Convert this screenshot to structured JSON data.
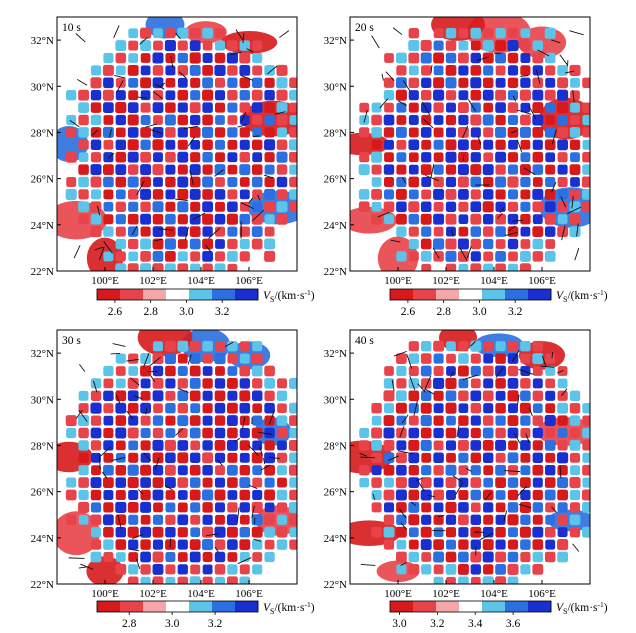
{
  "chart_data": [
    {
      "type": "heatmap",
      "panel_label": "10 s",
      "x_ticks": [
        "100°E",
        "102°E",
        "104°E",
        "106°E"
      ],
      "x_tick_values": [
        100,
        102,
        104,
        106
      ],
      "y_ticks": [
        "22°N",
        "24°N",
        "26°N",
        "28°N",
        "30°N",
        "32°N"
      ],
      "y_tick_values": [
        22,
        24,
        26,
        28,
        30,
        32
      ],
      "xlim": [
        98,
        108
      ],
      "ylim": [
        22,
        33
      ],
      "colorbar": {
        "min": 2.5,
        "max": 3.4,
        "ticks": [
          "2.6",
          "2.8",
          "3.0",
          "3.2"
        ],
        "tick_values": [
          2.6,
          2.8,
          3.0,
          3.2
        ]
      },
      "colorbar_label": "V",
      "colorbar_label_sub": "S",
      "colorbar_unit": "/(km·s",
      "colorbar_unit_exp": "-1",
      "colorbar_unit_close": ")"
    },
    {
      "type": "heatmap",
      "panel_label": "20 s",
      "x_ticks": [
        "100°E",
        "102°E",
        "104°E",
        "106°E"
      ],
      "x_tick_values": [
        100,
        102,
        104,
        106
      ],
      "y_ticks": [
        "22°N",
        "24°N",
        "26°N",
        "28°N",
        "30°N",
        "32°N"
      ],
      "y_tick_values": [
        22,
        24,
        26,
        28,
        30,
        32
      ],
      "xlim": [
        98,
        108
      ],
      "ylim": [
        22,
        33
      ],
      "colorbar": {
        "min": 2.5,
        "max": 3.4,
        "ticks": [
          "2.6",
          "2.8",
          "3.0",
          "3.2"
        ],
        "tick_values": [
          2.6,
          2.8,
          3.0,
          3.2
        ]
      },
      "colorbar_label": "V",
      "colorbar_label_sub": "S",
      "colorbar_unit": "/(km·s",
      "colorbar_unit_exp": "-1",
      "colorbar_unit_close": ")"
    },
    {
      "type": "heatmap",
      "panel_label": "30 s",
      "x_ticks": [
        "100°E",
        "102°E",
        "104°E",
        "106°E"
      ],
      "x_tick_values": [
        100,
        102,
        104,
        106
      ],
      "y_ticks": [
        "22°N",
        "24°N",
        "26°N",
        "28°N",
        "30°N",
        "32°N"
      ],
      "y_tick_values": [
        22,
        24,
        26,
        28,
        30,
        32
      ],
      "xlim": [
        98,
        108
      ],
      "ylim": [
        22,
        33
      ],
      "colorbar": {
        "min": 2.65,
        "max": 3.4,
        "ticks": [
          "2.8",
          "3.0",
          "3.2"
        ],
        "tick_values": [
          2.8,
          3.0,
          3.2
        ]
      },
      "colorbar_label": "V",
      "colorbar_label_sub": "S",
      "colorbar_unit": "/(km·s",
      "colorbar_unit_exp": "-1",
      "colorbar_unit_close": ")"
    },
    {
      "type": "heatmap",
      "panel_label": "40 s",
      "x_ticks": [
        "100°E",
        "102°E",
        "104°E",
        "106°E"
      ],
      "x_tick_values": [
        100,
        102,
        104,
        106
      ],
      "y_ticks": [
        "22°N",
        "24°N",
        "26°N",
        "28°N",
        "30°N",
        "32°N"
      ],
      "y_tick_values": [
        22,
        24,
        26,
        28,
        30,
        32
      ],
      "xlim": [
        98,
        108
      ],
      "ylim": [
        22,
        33
      ],
      "colorbar": {
        "min": 2.95,
        "max": 3.8,
        "ticks": [
          "3.0",
          "3.2",
          "3.4",
          "3.6"
        ],
        "tick_values": [
          3.0,
          3.2,
          3.4,
          3.6
        ]
      },
      "colorbar_label": "V",
      "colorbar_label_sub": "S",
      "colorbar_unit": "/(km·s",
      "colorbar_unit_exp": "-1",
      "colorbar_unit_close": ")"
    }
  ],
  "colors": {
    "red_dark": "#d7191c",
    "red_mid": "#e8424a",
    "red_light": "#f4a6a8",
    "white": "#ffffff",
    "cyan": "#5bc4e8",
    "blue_mid": "#2b6fe0",
    "blue_dark": "#1a2fd0"
  }
}
